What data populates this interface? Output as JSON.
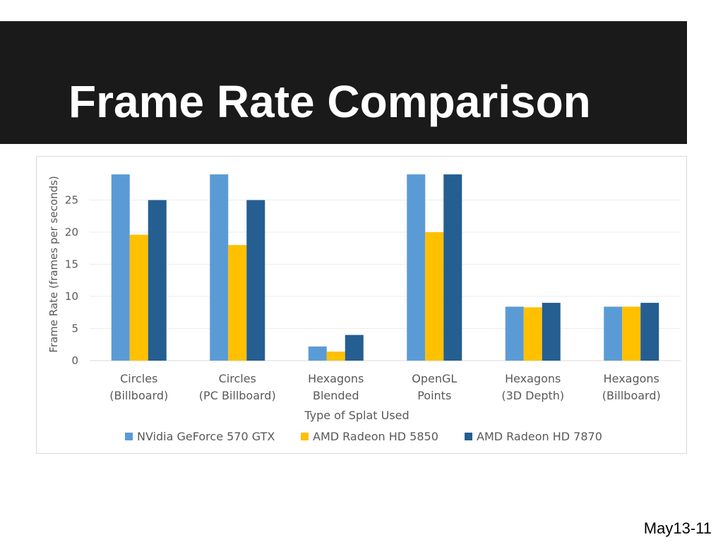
{
  "slide": {
    "title": "Frame Rate Comparison",
    "footer": "May13-11"
  },
  "colors": {
    "title_bar": "#1a1a1a",
    "series": [
      "#5b9bd5",
      "#ffc000",
      "#255e91"
    ]
  },
  "chart_data": {
    "type": "bar",
    "title": "",
    "xlabel": "Type of Splat Used",
    "ylabel": "Frame Rate (frames per seconds)",
    "ylim": [
      0,
      30
    ],
    "yticks": [
      0,
      5,
      10,
      15,
      20,
      25
    ],
    "grid": true,
    "legend_position": "bottom",
    "categories": [
      [
        "Circles",
        "(Billboard)"
      ],
      [
        "Circles",
        "(PC Billboard)"
      ],
      [
        "Hexagons",
        "Blended"
      ],
      [
        "OpenGL",
        "Points"
      ],
      [
        "Hexagons",
        "(3D Depth)"
      ],
      [
        "Hexagons",
        "(Billboard)"
      ]
    ],
    "series": [
      {
        "name": "NVidia GeForce 570 GTX",
        "values": [
          29,
          29,
          2.2,
          29,
          8.4,
          8.4
        ]
      },
      {
        "name": "AMD Radeon HD 5850",
        "values": [
          19.6,
          18,
          1.4,
          20,
          8.3,
          8.4
        ]
      },
      {
        "name": "AMD Radeon HD 7870",
        "values": [
          25,
          25,
          4,
          29,
          9,
          9
        ]
      }
    ]
  }
}
